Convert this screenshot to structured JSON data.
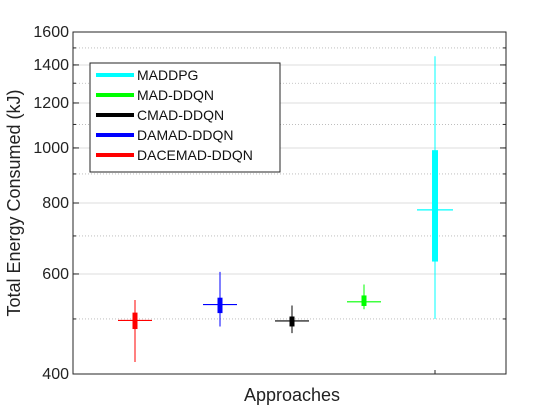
{
  "chart_data": {
    "type": "boxplot",
    "xlabel": "Approaches",
    "ylabel": "Total Energy Consumed (kJ)",
    "yscale": "log",
    "ylim": [
      400,
      1600
    ],
    "yticks": [
      400,
      600,
      800,
      1000,
      1200,
      1400,
      1600
    ],
    "grid": true,
    "legend_position": "top-left",
    "series": [
      {
        "name": "DACEMAD-DDQN",
        "color": "#ff0000",
        "min": 420,
        "q1": 480,
        "median": 497,
        "q3": 513,
        "max": 540
      },
      {
        "name": "DAMAD-DDQN",
        "color": "#0000ff",
        "min": 485,
        "q1": 512,
        "median": 530,
        "q3": 545,
        "max": 605
      },
      {
        "name": "CMAD-DDQN",
        "color": "#000000",
        "min": 472,
        "q1": 485,
        "median": 496,
        "q3": 505,
        "max": 528
      },
      {
        "name": "MAD-DDQN",
        "color": "#00ff00",
        "min": 520,
        "q1": 527,
        "median": 536,
        "q3": 550,
        "max": 575
      },
      {
        "name": "MADDPG",
        "color": "#00ffff",
        "min": 500,
        "q1": 631,
        "median": 778,
        "q3": 991,
        "max": 1450
      }
    ],
    "plot_order": [
      "DACEMAD-DDQN",
      "DAMAD-DDQN",
      "CMAD-DDQN",
      "MAD-DDQN",
      "MADDPG"
    ],
    "legend_order": [
      "MADDPG",
      "MAD-DDQN",
      "CMAD-DDQN",
      "DAMAD-DDQN",
      "DACEMAD-DDQN"
    ]
  }
}
